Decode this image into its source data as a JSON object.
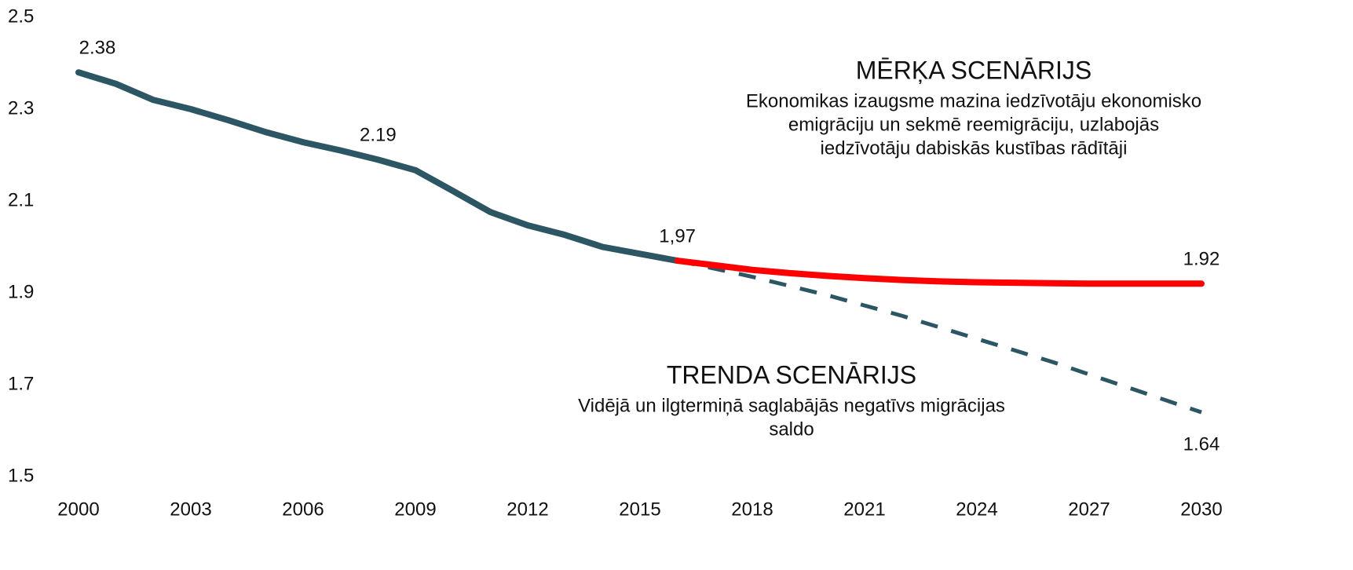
{
  "chart_data": {
    "type": "line",
    "xlim": [
      2000,
      2030
    ],
    "xticks": [
      2000,
      2003,
      2006,
      2009,
      2012,
      2015,
      2018,
      2021,
      2024,
      2027,
      2030
    ],
    "ylim": [
      1.5,
      2.5
    ],
    "yticks": [
      1.5,
      1.7,
      1.9,
      2.1,
      2.3,
      2.5
    ],
    "grid": false,
    "series": [
      {
        "color": "#2d5664",
        "style": "solid",
        "x": [
          2000,
          2001,
          2002,
          2003,
          2004,
          2005,
          2006,
          2007,
          2008,
          2009,
          2010,
          2011,
          2012,
          2013,
          2014,
          2015,
          2016
        ],
        "values": [
          2.38,
          2.355,
          2.32,
          2.3,
          2.276,
          2.25,
          2.228,
          2.21,
          2.19,
          2.167,
          2.122,
          2.076,
          2.047,
          2.026,
          2.0,
          1.985,
          1.97
        ],
        "value_labels": [
          "2.38",
          null,
          null,
          null,
          null,
          null,
          null,
          null,
          "2.19",
          null,
          null,
          null,
          null,
          null,
          null,
          null,
          "1,97"
        ]
      },
      {
        "color": "#2d5664",
        "style": "dashed",
        "x": [
          2016,
          2018,
          2020,
          2022,
          2024,
          2026,
          2028,
          2030
        ],
        "values": [
          1.97,
          1.935,
          1.895,
          1.85,
          1.8,
          1.75,
          1.695,
          1.64
        ],
        "value_labels": [
          null,
          null,
          null,
          null,
          null,
          null,
          null,
          "1.64"
        ]
      },
      {
        "color": "#ff0000",
        "style": "solid",
        "x": [
          2016,
          2017,
          2018,
          2019,
          2020,
          2021,
          2022,
          2023,
          2024,
          2025,
          2026,
          2027,
          2028,
          2029,
          2030
        ],
        "values": [
          1.97,
          1.96,
          1.95,
          1.943,
          1.937,
          1.932,
          1.928,
          1.925,
          1.923,
          1.922,
          1.921,
          1.92,
          1.92,
          1.92,
          1.92
        ],
        "value_labels": [
          null,
          null,
          null,
          null,
          null,
          null,
          null,
          null,
          null,
          null,
          null,
          null,
          null,
          null,
          "1.92"
        ]
      }
    ],
    "annotations": [
      {
        "title": "MĒRĶA SCENĀRIJS",
        "color": "#c00000",
        "lines": [
          "Ekonomikas izaugsme mazina iedzīvotāju ekonomisko",
          "emigrāciju un sekmē reemigrāciju, uzlabojās",
          "iedzīvotāju dabiskās kustības rādītāji"
        ]
      },
      {
        "title": "TRENDA SCENĀRIJS",
        "color": "#2e4d8a",
        "lines": [
          "Vidējā un ilgtermiņā saglabājās negatīvs migrācijas",
          "saldo"
        ]
      }
    ]
  }
}
